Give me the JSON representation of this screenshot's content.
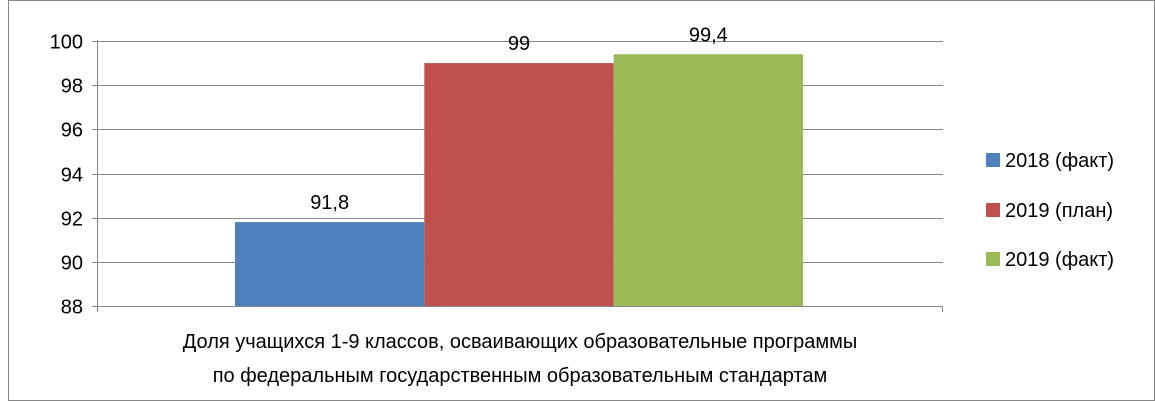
{
  "chart_data": {
    "type": "bar",
    "categories": [
      "Доля учащихся 1-9 классов, осваивающих образовательные программы по федеральным государственным образовательным стандартам"
    ],
    "category_lines": [
      "Доля учащихся 1-9 классов, осваивающих образовательные программы",
      "по федеральным государственным образовательным стандартам"
    ],
    "series": [
      {
        "name": "2018 (факт)",
        "values": [
          91.8
        ],
        "label": "91,8",
        "color": "#4F81BD"
      },
      {
        "name": "2019 (план)",
        "values": [
          99
        ],
        "label": "99",
        "color": "#C0504D"
      },
      {
        "name": "2019 (факт)",
        "values": [
          99.4
        ],
        "label": "99,4",
        "color": "#9BBB59"
      }
    ],
    "ylim": [
      88,
      100
    ],
    "yticks": [
      88,
      90,
      92,
      94,
      96,
      98,
      100
    ],
    "grid": true,
    "legend_position": "right",
    "title": "",
    "xlabel": "",
    "ylabel": ""
  }
}
